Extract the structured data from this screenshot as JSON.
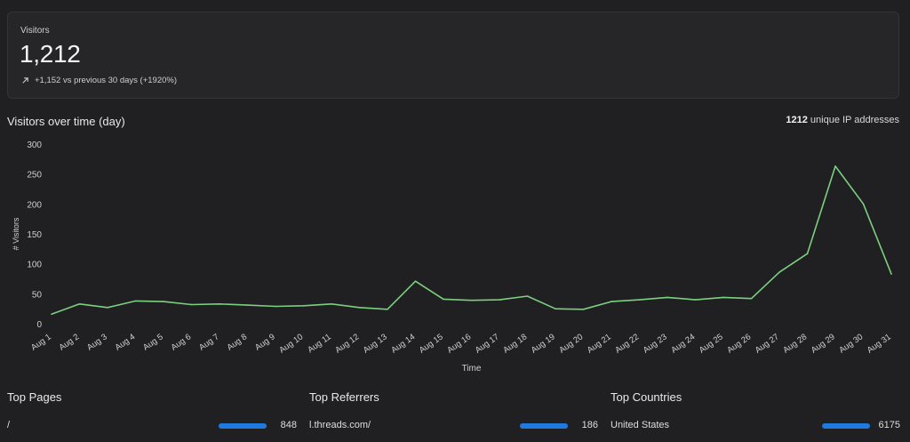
{
  "summary": {
    "label": "Visitors",
    "value": "1,212",
    "change_text": "+1,152 vs previous 30 days (+1920%)",
    "change_icon": "arrow-up-right-icon"
  },
  "chart_header": {
    "title": "Visitors over time (day)",
    "ip_count": "1212",
    "ip_label": "unique IP addresses"
  },
  "chart_data": {
    "type": "line",
    "title": "Visitors over time (day)",
    "xlabel": "Time",
    "ylabel": "# Visitors",
    "ylim": [
      0,
      300
    ],
    "yticks": [
      0,
      50,
      100,
      150,
      200,
      250,
      300
    ],
    "grid": false,
    "color": "#7bd07f",
    "categories": [
      "Aug 1",
      "Aug 2",
      "Aug 3",
      "Aug 4",
      "Aug 5",
      "Aug 6",
      "Aug 7",
      "Aug 8",
      "Aug 9",
      "Aug 10",
      "Aug 11",
      "Aug 12",
      "Aug 13",
      "Aug 14",
      "Aug 15",
      "Aug 16",
      "Aug 17",
      "Aug 18",
      "Aug 19",
      "Aug 20",
      "Aug 21",
      "Aug 22",
      "Aug 23",
      "Aug 24",
      "Aug 25",
      "Aug 26",
      "Aug 27",
      "Aug 28",
      "Aug 29",
      "Aug 30",
      "Aug 31"
    ],
    "values": [
      16,
      33,
      27,
      38,
      37,
      32,
      33,
      31,
      29,
      30,
      33,
      27,
      24,
      71,
      41,
      39,
      40,
      46,
      25,
      24,
      37,
      40,
      44,
      40,
      44,
      42,
      86,
      117,
      263,
      200,
      83
    ]
  },
  "top_pages": {
    "title": "Top Pages",
    "items": [
      {
        "label": "/",
        "count": "848"
      }
    ]
  },
  "top_referrers": {
    "title": "Top Referrers",
    "items": [
      {
        "label": "l.threads.com/",
        "count": "186"
      }
    ]
  },
  "top_countries": {
    "title": "Top Countries",
    "items": [
      {
        "label": "United States",
        "count": "6175"
      }
    ]
  },
  "colors": {
    "background": "#202022",
    "card": "#262628",
    "line": "#7bd07f",
    "bar": "#1f7ae0"
  }
}
